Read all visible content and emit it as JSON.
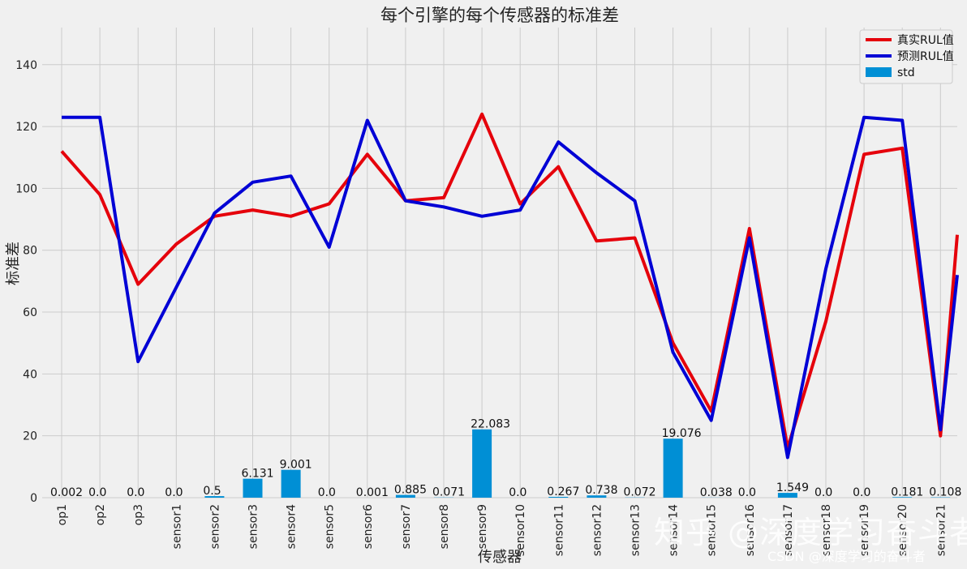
{
  "chart_data": {
    "type": "bar",
    "title": "每个引擎的每个传感器的标准差",
    "xlabel": "传感器",
    "ylabel": "标准差",
    "ylim": [
      0,
      152
    ],
    "yticks": [
      0,
      20,
      40,
      60,
      80,
      100,
      120,
      140
    ],
    "grid": true,
    "legend_position": "top-right",
    "categories": [
      "op1",
      "op2",
      "op3",
      "sensor1",
      "sensor2",
      "sensor3",
      "sensor4",
      "sensor5",
      "sensor6",
      "sensor7",
      "sensor8",
      "sensor9",
      "sensor10",
      "sensor11",
      "sensor12",
      "sensor13",
      "sensor14",
      "sensor15",
      "sensor16",
      "sensor17",
      "sensor18",
      "sensor19",
      "sensor20",
      "sensor21"
    ],
    "bar_series": {
      "name": "std",
      "color": "#008fd5",
      "values": [
        0.002,
        0.0,
        0.0,
        0.0,
        0.5,
        6.131,
        9.001,
        0.0,
        0.001,
        0.885,
        0.071,
        22.083,
        0.0,
        0.267,
        0.738,
        0.072,
        19.076,
        0.038,
        0.0,
        1.549,
        0.0,
        0.0,
        0.181,
        0.108
      ],
      "labels": [
        "0.002",
        "0.0",
        "0.0",
        "0.0",
        "0.5",
        "6.131",
        "9.001",
        "0.0",
        "0.001",
        "0.885",
        "0.071",
        "22.083",
        "0.0",
        "0.267",
        "0.738",
        "0.072",
        "19.076",
        "0.038",
        "0.0",
        "1.549",
        "0.0",
        "0.0",
        "0.181",
        "0.108"
      ]
    },
    "line_series": [
      {
        "name": "真实RUL值",
        "color": "#e5000b",
        "x": [
          0,
          1,
          2,
          3,
          4,
          5,
          6,
          7,
          8,
          9,
          10,
          11,
          12,
          13,
          14,
          15,
          16,
          17,
          18,
          19,
          20,
          21,
          22,
          23,
          23.5
        ],
        "values": [
          112,
          98,
          69,
          82,
          91,
          93,
          91,
          95,
          111,
          96,
          97,
          124,
          95,
          107,
          83,
          84,
          50,
          28,
          87,
          16,
          57,
          111,
          113,
          20,
          85
        ]
      },
      {
        "name": "预测RUL值",
        "color": "#0000d5",
        "x": [
          0,
          1,
          2,
          3,
          4,
          5,
          6,
          7,
          8,
          9,
          10,
          11,
          12,
          13,
          14,
          15,
          16,
          17,
          18,
          19,
          20,
          21,
          22,
          23,
          23.5
        ],
        "values": [
          123,
          123,
          44,
          68,
          92,
          102,
          104,
          81,
          122,
          96,
          94,
          91,
          93,
          115,
          105,
          96,
          47,
          25,
          84,
          13,
          74,
          123,
          122,
          22,
          72
        ]
      }
    ]
  },
  "watermarks": {
    "zhihu": "知乎 @深度学习奋斗者",
    "csdn": "CSDN @深度学习的奋斗者"
  }
}
